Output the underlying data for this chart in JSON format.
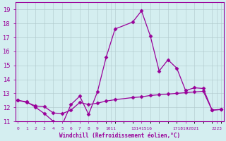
{
  "x": [
    0,
    1,
    2,
    3,
    4,
    5,
    6,
    7,
    8,
    9,
    10,
    11,
    13,
    14,
    15,
    16,
    17,
    18,
    19,
    20,
    21,
    22,
    23
  ],
  "line1": [
    12.5,
    12.4,
    12.0,
    11.55,
    11.0,
    10.75,
    12.2,
    12.8,
    11.5,
    13.1,
    15.6,
    17.6,
    18.1,
    18.9,
    17.1,
    14.6,
    15.4,
    14.8,
    13.2,
    13.4,
    13.35,
    11.8,
    11.85
  ],
  "line2": [
    12.5,
    12.35,
    12.1,
    12.05,
    11.6,
    11.55,
    11.8,
    12.35,
    12.2,
    12.3,
    12.45,
    12.55,
    12.7,
    12.75,
    12.85,
    12.9,
    12.95,
    13.0,
    13.05,
    13.1,
    13.15,
    11.8,
    11.85
  ],
  "xlabel": "Windchill (Refroidissement éolien,°C)",
  "ylim": [
    11,
    19.5
  ],
  "xlim": [
    -0.3,
    23.3
  ],
  "yticks": [
    11,
    12,
    13,
    14,
    15,
    16,
    17,
    18,
    19
  ],
  "xtick_positions": [
    0,
    1,
    2,
    3,
    4,
    5,
    6,
    7,
    8,
    9,
    10.5,
    14.0,
    19.0,
    22.5
  ],
  "xtick_labels": [
    "0",
    "1",
    "2",
    "3",
    "4",
    "5",
    "6",
    "7",
    "8",
    "9",
    "1011",
    "13141516",
    "1718192021",
    "2223"
  ],
  "line_color": "#990099",
  "bg_color": "#d4eef0",
  "grid_color": "#b0c8cc",
  "text_color": "#990099",
  "marker": "D",
  "marker_size": 2.5,
  "linewidth": 0.9
}
